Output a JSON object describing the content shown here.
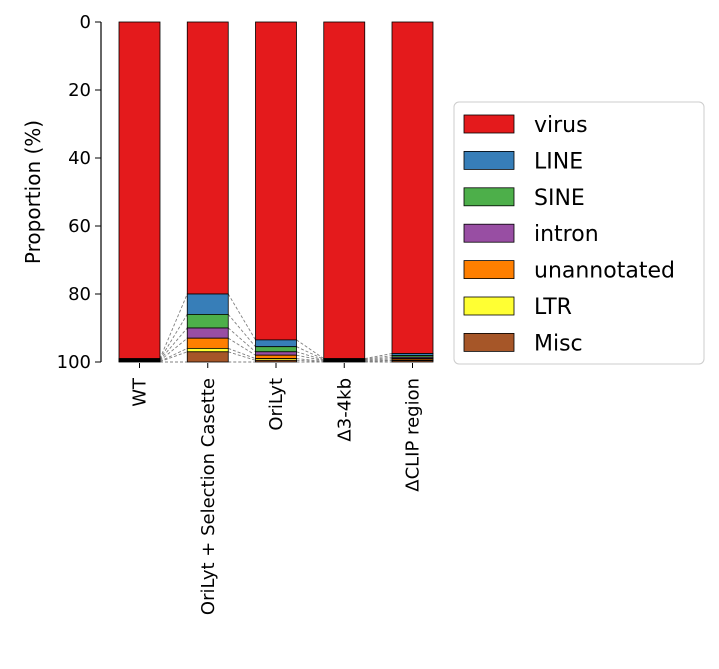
{
  "chart_data": {
    "type": "bar",
    "stacked": true,
    "y_inverted": true,
    "ylabel": "Proportion (%)",
    "xlabel": "",
    "ylim": [
      0,
      100
    ],
    "yticks": [
      0,
      20,
      40,
      60,
      80,
      100
    ],
    "categories": [
      "WT",
      "OriLyt + Selection Casette",
      "OriLyt",
      "Δ3-4kb",
      "ΔCLIP region"
    ],
    "series": [
      {
        "name": "virus",
        "color": "#e41a1c",
        "values": [
          99.0,
          80.0,
          93.5,
          99.0,
          97.5
        ]
      },
      {
        "name": "LINE",
        "color": "#377eb8",
        "values": [
          0.2,
          6.0,
          2.0,
          0.2,
          0.6
        ]
      },
      {
        "name": "SINE",
        "color": "#4daf4a",
        "values": [
          0.2,
          4.0,
          1.5,
          0.2,
          0.5
        ]
      },
      {
        "name": "intron",
        "color": "#984ea3",
        "values": [
          0.2,
          3.0,
          1.0,
          0.2,
          0.4
        ]
      },
      {
        "name": "unannotated",
        "color": "#ff7f00",
        "values": [
          0.2,
          3.0,
          1.0,
          0.2,
          0.4
        ]
      },
      {
        "name": "LTR",
        "color": "#ffff33",
        "values": [
          0.1,
          1.0,
          0.5,
          0.1,
          0.2
        ]
      },
      {
        "name": "Misc",
        "color": "#a65628",
        "values": [
          0.1,
          3.0,
          0.5,
          0.1,
          0.4
        ]
      }
    ],
    "connectors": "dashed-gray",
    "grid": false,
    "legend_position": "right"
  }
}
